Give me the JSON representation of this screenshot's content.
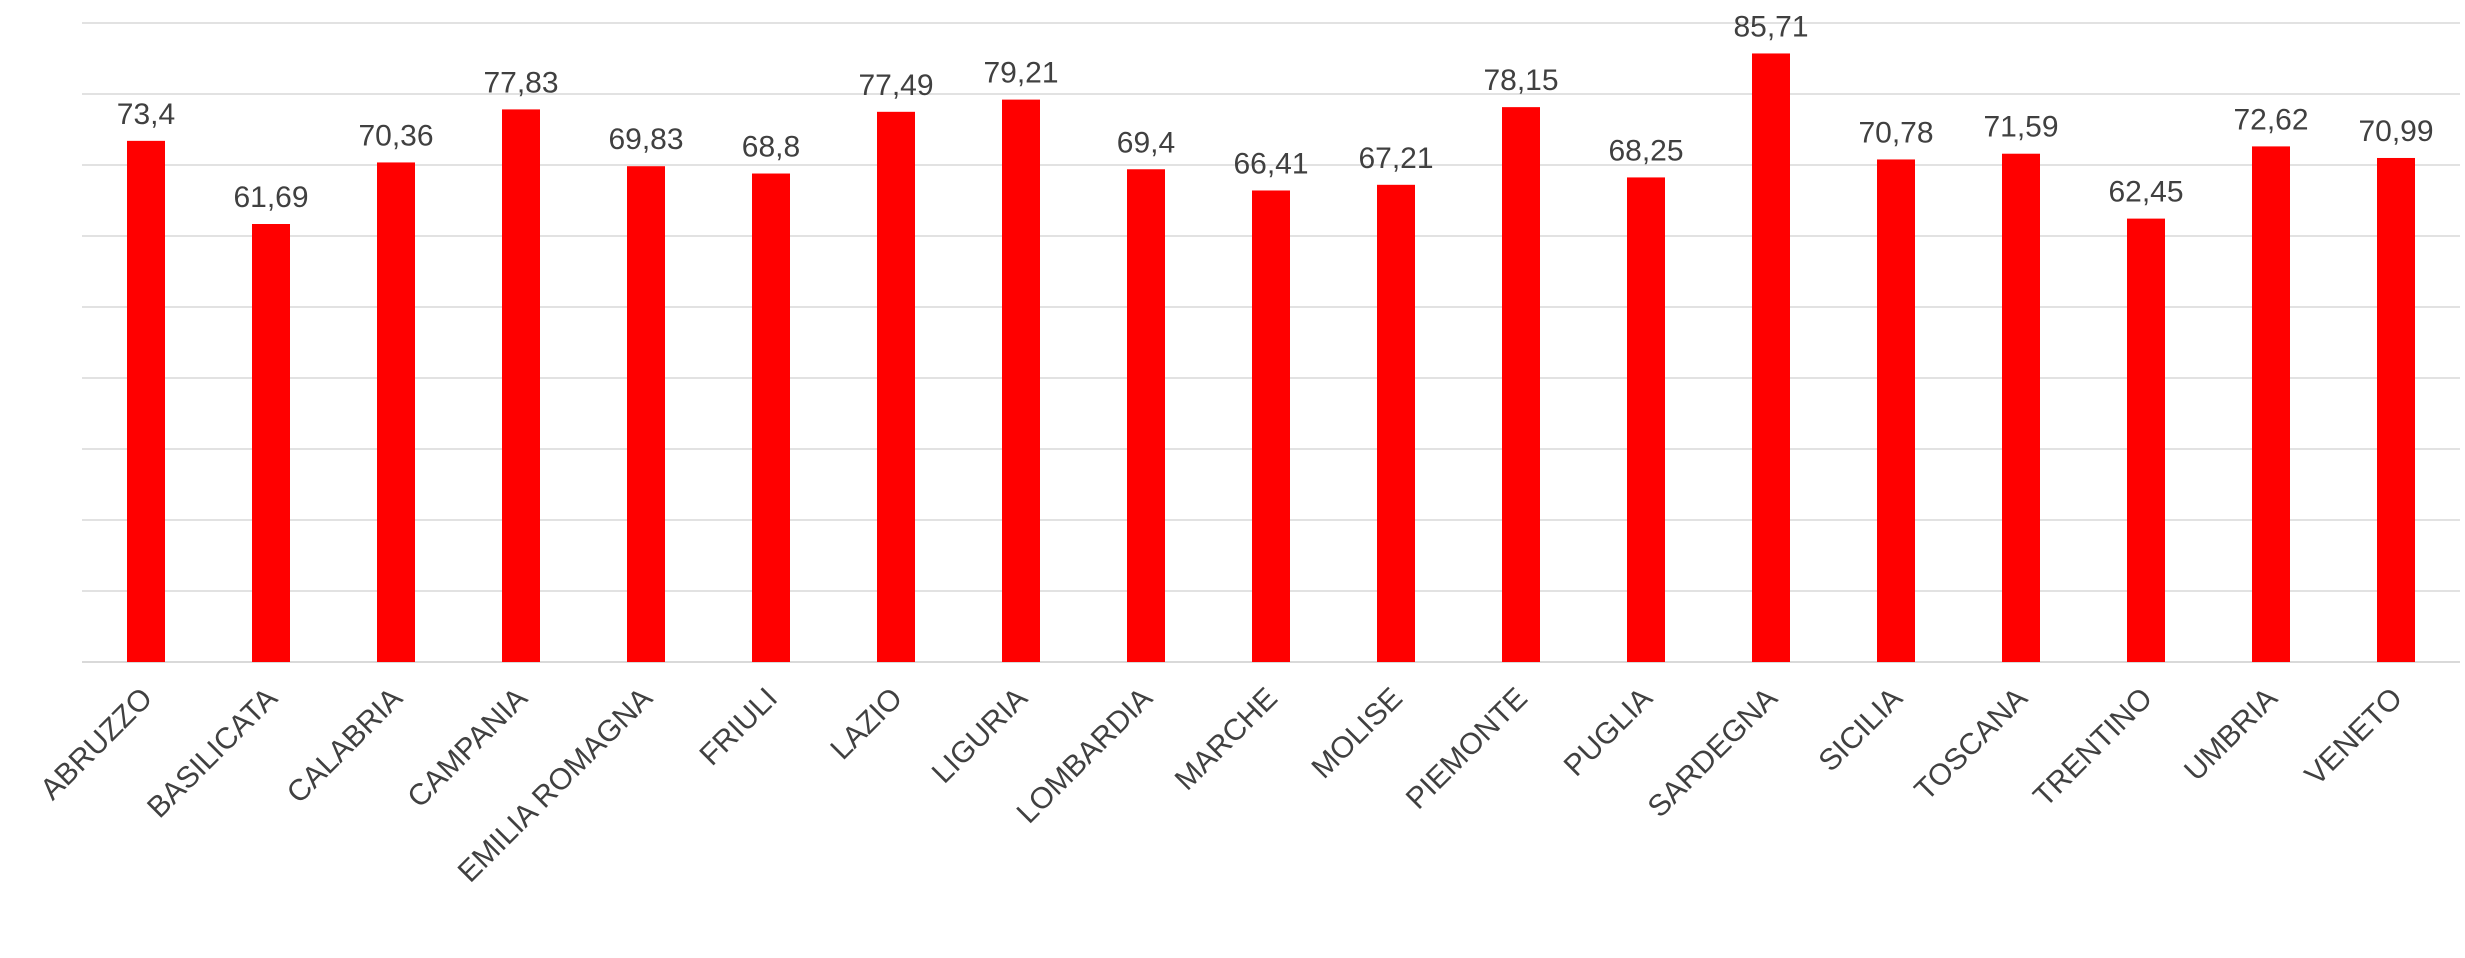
{
  "chart_data": {
    "type": "bar",
    "categories": [
      "ABRUZZO",
      "BASILICATA",
      "CALABRIA",
      "CAMPANIA",
      "EMILIA ROMAGNA",
      "FRIULI",
      "LAZIO",
      "LIGURIA",
      "LOMBARDIA",
      "MARCHE",
      "MOLISE",
      "PIEMONTE",
      "PUGLIA",
      "SARDEGNA",
      "SICILIA",
      "TOSCANA",
      "TRENTINO",
      "UMBRIA",
      "VENETO"
    ],
    "values": [
      73.4,
      61.69,
      70.36,
      77.83,
      69.83,
      68.8,
      77.49,
      79.21,
      69.4,
      66.41,
      67.21,
      78.15,
      68.25,
      85.71,
      70.78,
      71.59,
      62.45,
      72.62,
      70.99
    ],
    "value_labels": [
      "73,4",
      "61,69",
      "70,36",
      "77,83",
      "69,83",
      "68,8",
      "77,49",
      "79,21",
      "69,4",
      "66,41",
      "67,21",
      "78,15",
      "68,25",
      "85,71",
      "70,78",
      "71,59",
      "62,45",
      "72,62",
      "70,99"
    ],
    "ylim": [
      0,
      90
    ],
    "grid": true,
    "bar_color": "#ff0000",
    "grid_color": "#d9d9d9",
    "label_color": "#404040",
    "title": "",
    "xlabel": "",
    "ylabel": ""
  }
}
